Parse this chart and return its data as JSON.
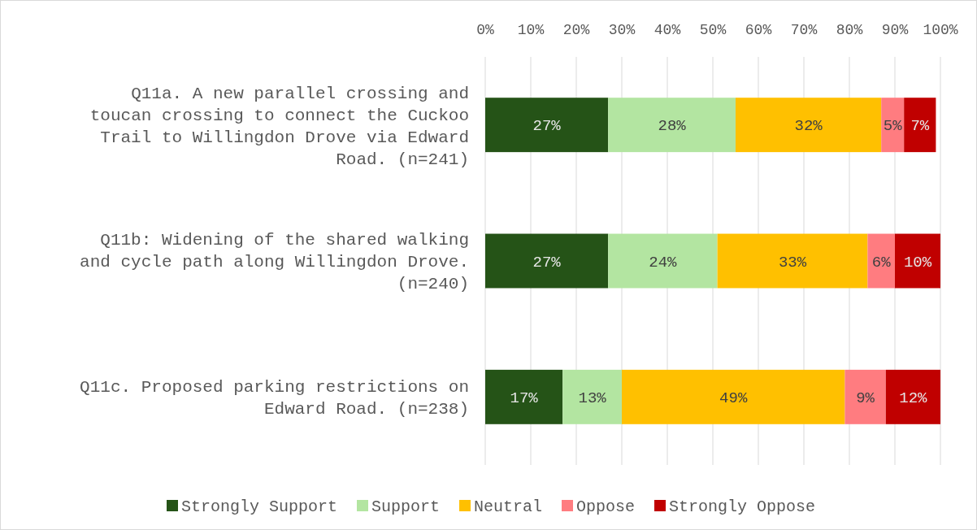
{
  "chart_data": {
    "type": "bar",
    "orientation": "horizontal",
    "stacked": true,
    "categories": [
      "Q11a. A new parallel crossing and toucan crossing to connect the Cuckoo Trail to Willingdon Drove via Edward Road. (n=241)",
      "Q11b: Widening of the shared walking and cycle path along Willingdon Drove. (n=240)",
      "Q11c. Proposed parking restrictions on Edward Road. (n=238)"
    ],
    "series": [
      {
        "name": "Strongly Support",
        "color": "#255317",
        "values": [
          27,
          27,
          17
        ],
        "value_labels": [
          "27%",
          "27%",
          "17%"
        ]
      },
      {
        "name": "Support",
        "color": "#b3e5a1",
        "values": [
          28,
          24,
          13
        ],
        "value_labels": [
          "28%",
          "24%",
          "13%"
        ]
      },
      {
        "name": "Neutral",
        "color": "#ffc000",
        "values": [
          32,
          33,
          49
        ],
        "value_labels": [
          "32%",
          "33%",
          "49%"
        ]
      },
      {
        "name": "Oppose",
        "color": "#ff7c80",
        "values": [
          5,
          6,
          9
        ],
        "value_labels": [
          "5%",
          "6%",
          "9%"
        ]
      },
      {
        "name": "Strongly Oppose",
        "color": "#c00000",
        "values": [
          7,
          10,
          12
        ],
        "value_labels": [
          "7%",
          "10%",
          "12%"
        ]
      }
    ],
    "xlim": [
      0,
      100
    ],
    "xticks": [
      {
        "value": 0,
        "label": "0%"
      },
      {
        "value": 10,
        "label": "10%"
      },
      {
        "value": 20,
        "label": "20%"
      },
      {
        "value": 30,
        "label": "30%"
      },
      {
        "value": 40,
        "label": "40%"
      },
      {
        "value": 50,
        "label": "50%"
      },
      {
        "value": 60,
        "label": "60%"
      },
      {
        "value": 70,
        "label": "70%"
      },
      {
        "value": 80,
        "label": "80%"
      },
      {
        "value": 90,
        "label": "90%"
      },
      {
        "value": 100,
        "label": "100%"
      }
    ],
    "grid": "x",
    "legend": "bottom"
  }
}
